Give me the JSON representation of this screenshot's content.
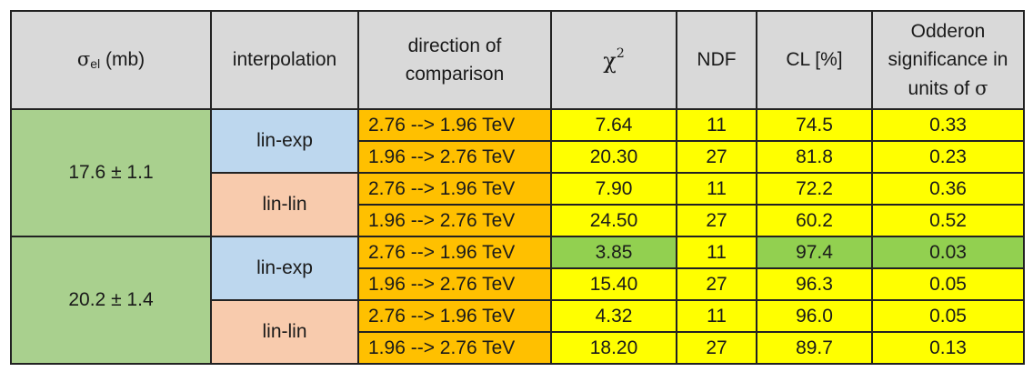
{
  "table": {
    "headers": {
      "sigma_symbol": "σ",
      "sigma_subscript": "el",
      "sigma_unit": " (mb)",
      "interpolation": "interpolation",
      "direction": "direction of comparison",
      "chi_symbol": "χ",
      "chi_exponent": "2",
      "ndf": "NDF",
      "cl": "CL [%]",
      "significance_text": "Odderon significance in units of ",
      "significance_symbol": "σ"
    },
    "groups": [
      {
        "sigma_el": "17.6 ± 1.1",
        "interpolations": [
          {
            "method": "lin-exp",
            "rows": [
              {
                "direction": "2.76 --> 1.96  TeV",
                "chi2": "7.64",
                "ndf": "11",
                "cl": "74.5",
                "significance": "0.33"
              },
              {
                "direction": "1.96 --> 2.76  TeV",
                "chi2": "20.30",
                "ndf": "27",
                "cl": "81.8",
                "significance": "0.23"
              }
            ]
          },
          {
            "method": "lin-lin",
            "rows": [
              {
                "direction": "2.76 --> 1.96  TeV",
                "chi2": "7.90",
                "ndf": "11",
                "cl": "72.2",
                "significance": "0.36"
              },
              {
                "direction": "1.96 --> 2.76  TeV",
                "chi2": "24.50",
                "ndf": "27",
                "cl": "60.2",
                "significance": "0.52"
              }
            ]
          }
        ]
      },
      {
        "sigma_el": "20.2 ± 1.4",
        "interpolations": [
          {
            "method": "lin-exp",
            "rows": [
              {
                "direction": "2.76 --> 1.96  TeV",
                "chi2": "3.85",
                "ndf": "11",
                "cl": "97.4",
                "significance": "0.03"
              },
              {
                "direction": "1.96 --> 2.76  TeV",
                "chi2": "15.40",
                "ndf": "27",
                "cl": "96.3",
                "significance": "0.05"
              }
            ]
          },
          {
            "method": "lin-lin",
            "rows": [
              {
                "direction": "2.76 --> 1.96  TeV",
                "chi2": "4.32",
                "ndf": "11",
                "cl": "96.0",
                "significance": "0.05"
              },
              {
                "direction": "1.96 --> 2.76  TeV",
                "chi2": "18.20",
                "ndf": "27",
                "cl": "89.7",
                "significance": "0.13"
              }
            ]
          }
        ]
      }
    ]
  },
  "colors": {
    "header_bg": "#d9d9d9",
    "sigma_bg": "#a9d08e",
    "lin_exp_bg": "#bdd7ee",
    "lin_lin_bg": "#f8cbad",
    "direction_bg": "#ffc000",
    "value_bg": "#ffff00",
    "highlight_bg": "#92d050"
  }
}
